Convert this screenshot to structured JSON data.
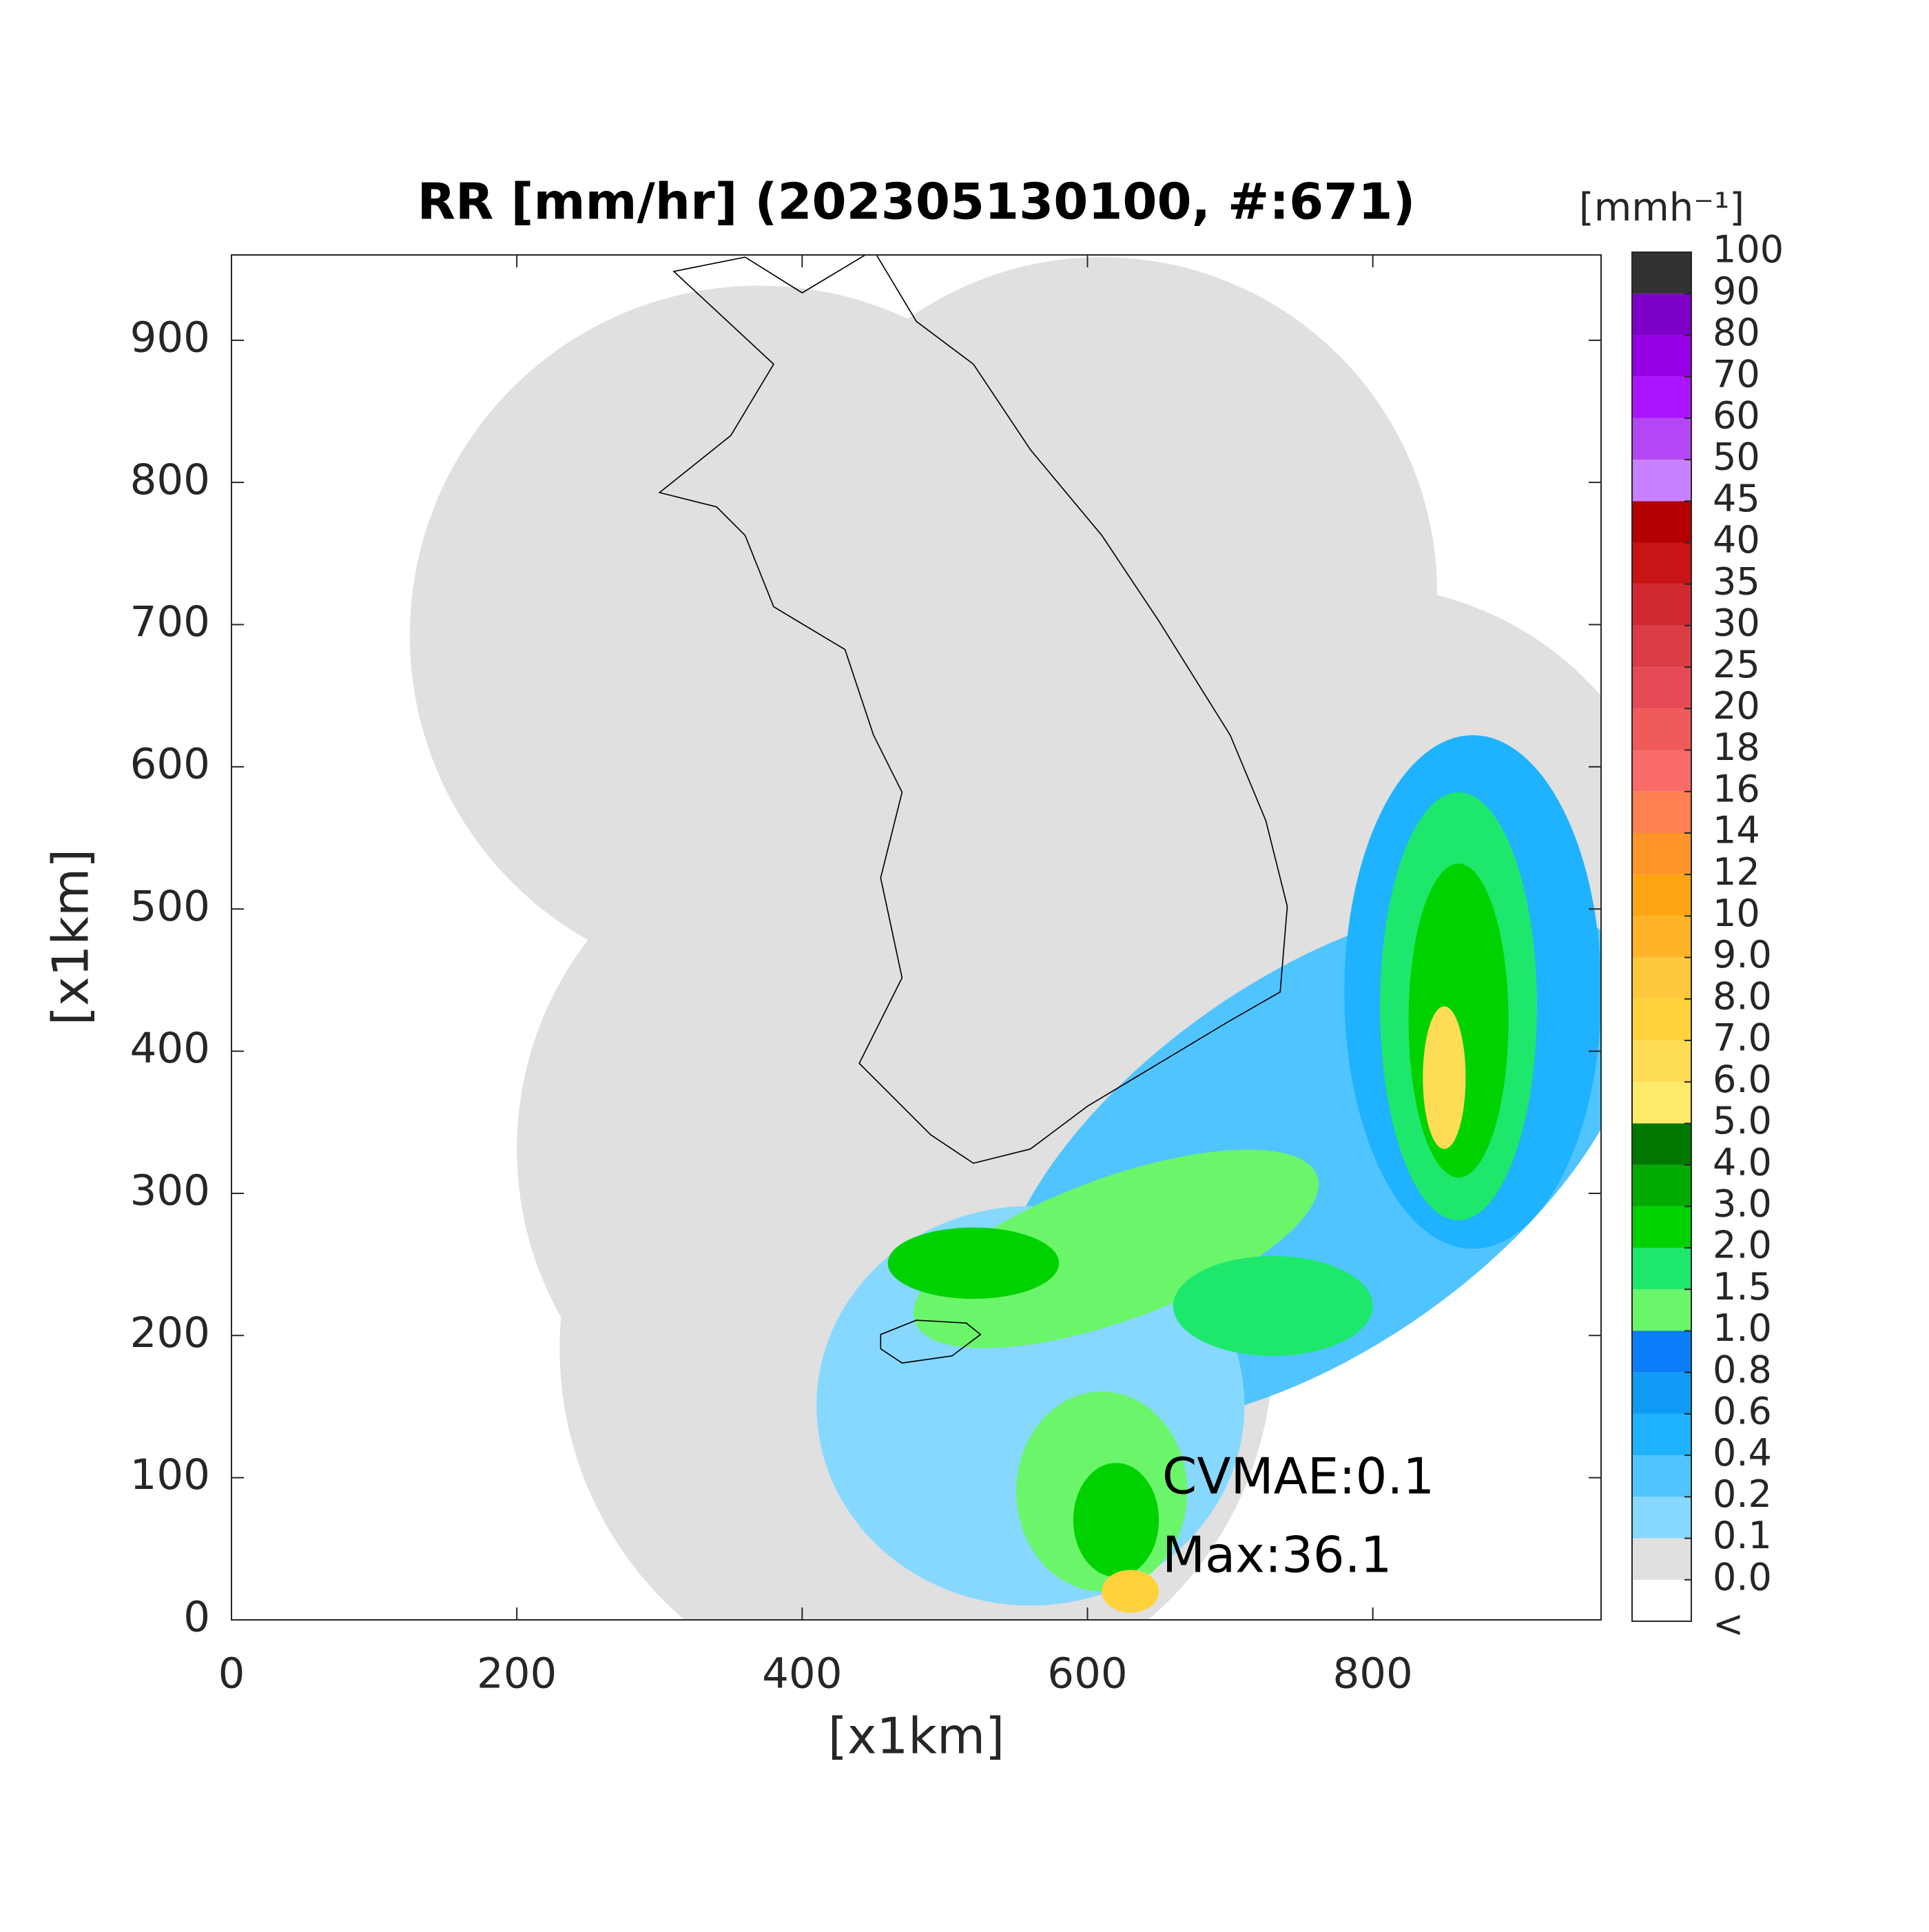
{
  "title": "RR [mm/hr] (202305130100, #:671)",
  "x_axis": {
    "label": "[x1km]",
    "lim": [
      0,
      960
    ],
    "ticks": [
      0,
      200,
      400,
      600,
      800
    ]
  },
  "y_axis": {
    "label": "[x1km]",
    "lim": [
      0,
      960
    ],
    "ticks": [
      0,
      100,
      200,
      300,
      400,
      500,
      600,
      700,
      800,
      900
    ]
  },
  "colorbar": {
    "unit": "[mmh⁻¹]",
    "below_label": "<",
    "levels": [
      {
        "value": 0,
        "label": "0.0"
      },
      0.1,
      0.2,
      0.4,
      0.6,
      0.8,
      {
        "value": 1,
        "label": "1.0"
      },
      1.5,
      {
        "value": 2,
        "label": "2.0"
      },
      {
        "value": 3,
        "label": "3.0"
      },
      {
        "value": 4,
        "label": "4.0"
      },
      {
        "value": 5,
        "label": "5.0"
      },
      {
        "value": 6,
        "label": "6.0"
      },
      {
        "value": 7,
        "label": "7.0"
      },
      {
        "value": 8,
        "label": "8.0"
      },
      {
        "value": 9,
        "label": "9.0"
      },
      10,
      12,
      14,
      16,
      18,
      20,
      25,
      30,
      35,
      40,
      45,
      50,
      60,
      70,
      80,
      90,
      100
    ],
    "colors": [
      "#ffffff",
      "#e0e0e0",
      "#87d8ff",
      "#50c4ff",
      "#1eb2ff",
      "#0f9bf5",
      "#0a7dfa",
      "#6bf56b",
      "#1ee86b",
      "#00d200",
      "#00aa00",
      "#007800",
      "#ffeb6b",
      "#ffdc55",
      "#ffd23c",
      "#ffc83c",
      "#ffb428",
      "#ffa514",
      "#ff9428",
      "#ff8050",
      "#f96b6b",
      "#f05a5a",
      "#e64b55",
      "#dc3c46",
      "#d22832",
      "#c81414",
      "#b40000",
      "#c882ff",
      "#b446f5",
      "#aa14ff",
      "#9600e6",
      "#7d00c8",
      "#323232"
    ]
  },
  "annotations": [
    "CVMAE:0.1",
    "Max:36.1"
  ]
}
